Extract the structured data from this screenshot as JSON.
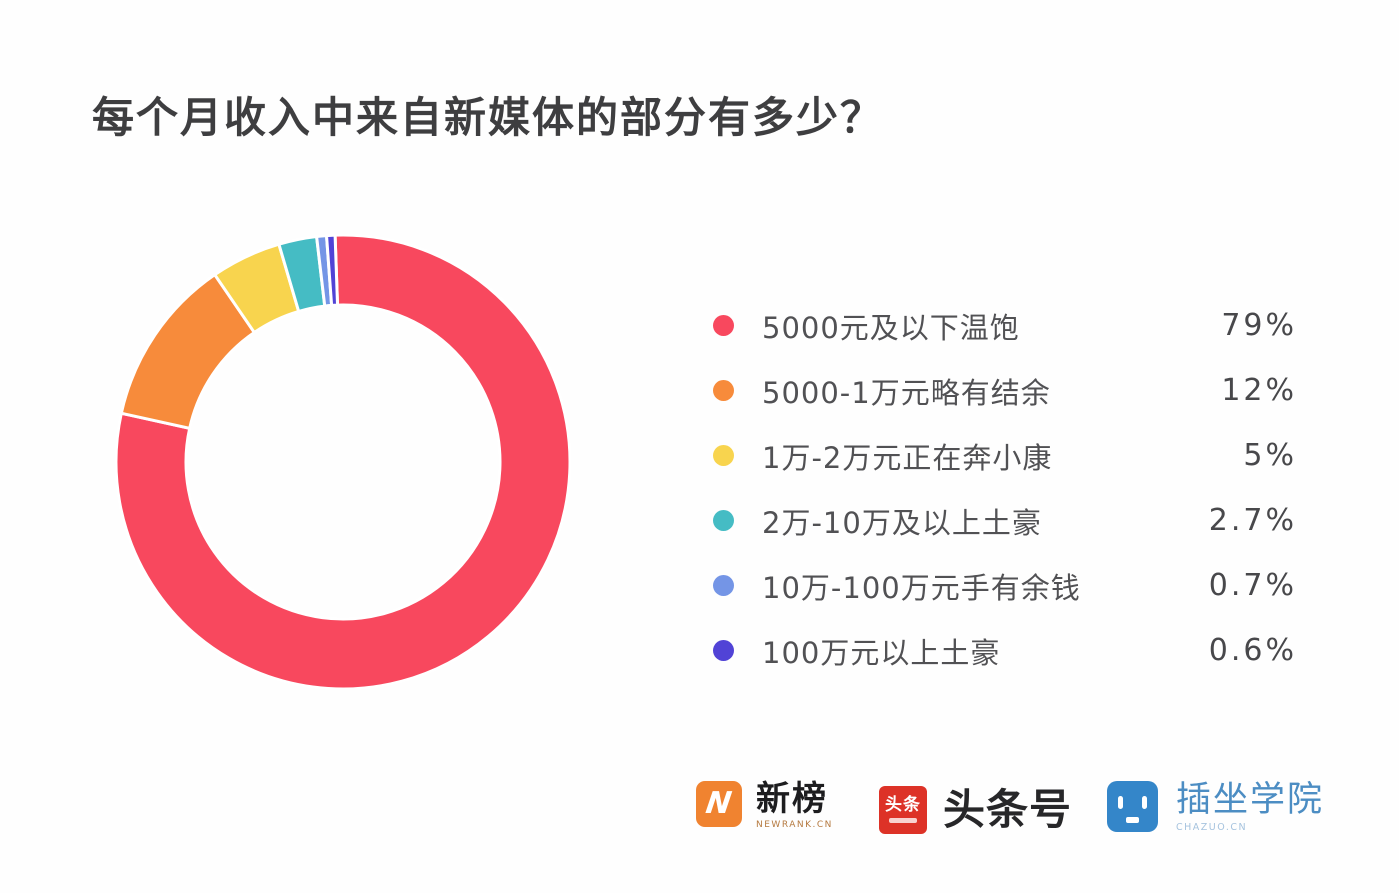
{
  "chart_data": {
    "type": "pie",
    "subtype": "donut",
    "title": "每个月收入中来自新媒体的部分有多少？",
    "legend_position": "right",
    "rotation": -2,
    "direction": "clockwise",
    "inner_radius_ratio": 0.69,
    "series": [
      {
        "label": "5000元及以下温饱",
        "value": 79,
        "display": "79%",
        "color": "#F8485E"
      },
      {
        "label": "5000-1万元略有结余",
        "value": 12,
        "display": "12%",
        "color": "#F78B3B"
      },
      {
        "label": "1万-2万元正在奔小康",
        "value": 5,
        "display": "5%",
        "color": "#F8D44E"
      },
      {
        "label": "2万-10万及以上土豪",
        "value": 2.7,
        "display": "2.7%",
        "color": "#45BCC4"
      },
      {
        "label": "10万-100万元手有余钱",
        "value": 0.7,
        "display": "0.7%",
        "color": "#7495E6"
      },
      {
        "label": "100万元以上土豪",
        "value": 0.6,
        "display": "0.6%",
        "color": "#5143D6"
      }
    ]
  },
  "footer": {
    "newrank": {
      "name": "新榜",
      "subtext": "NEWRANK.CN",
      "icon_letter": "N",
      "icon_color": "#F08330"
    },
    "toutiao": {
      "name": "头条号",
      "icon_text": "头条",
      "icon_color": "#DD3227"
    },
    "chazuo": {
      "name": "插坐学院",
      "subtext": "CHAZUO.CN",
      "icon_color": "#3486C9"
    }
  }
}
